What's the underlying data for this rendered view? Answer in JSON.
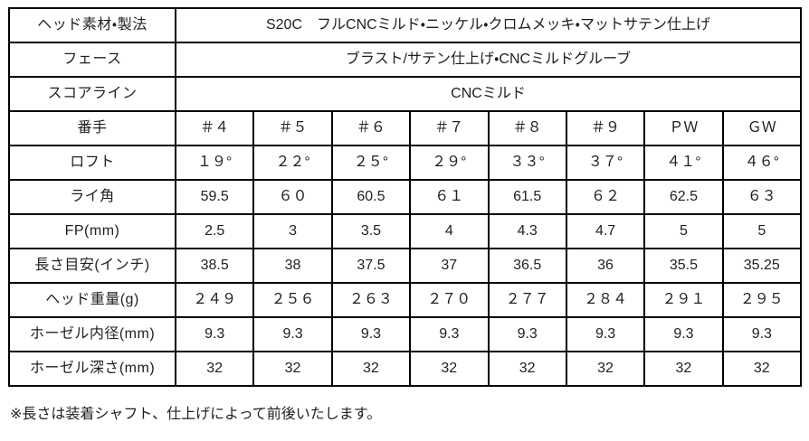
{
  "table": {
    "spec_rows": [
      {
        "label": "ヘッド素材・製法",
        "value": "S20C　フルCNCミルド・ニッケル・クロムメッキ・マットサテン仕上げ"
      },
      {
        "label": "フェース",
        "value": "ブラスト/サテン仕上げ・CNCミルドグルーブ"
      },
      {
        "label": "スコアライン",
        "value": "CNCミルド"
      }
    ],
    "data_rows": [
      {
        "label": "番手",
        "values": [
          "＃４",
          "＃５",
          "＃６",
          "＃７",
          "＃８",
          "＃９",
          "ＰＷ",
          "ＧＷ"
        ]
      },
      {
        "label": "ロフト",
        "values": [
          "１９°",
          "２２°",
          "２５°",
          "２９°",
          "３３°",
          "３７°",
          "４１°",
          "４６°"
        ]
      },
      {
        "label": "ライ角",
        "values": [
          "59.5",
          "６０",
          "60.5",
          "６１",
          "61.5",
          "６２",
          "62.5",
          "６３"
        ]
      },
      {
        "label": "FP(mm)",
        "values": [
          "2.5",
          "3",
          "3.5",
          "4",
          "4.3",
          "4.7",
          "5",
          "5"
        ]
      },
      {
        "label": "長さ目安(インチ)",
        "values": [
          "38.5",
          "38",
          "37.5",
          "37",
          "36.5",
          "36",
          "35.5",
          "35.25"
        ]
      },
      {
        "label": "ヘッド重量(g)",
        "values": [
          "２４９",
          "２５６",
          "２６３",
          "２７０",
          "２７７",
          "２８４",
          "２９１",
          "２９５"
        ]
      },
      {
        "label": "ホーゼル内径(mm)",
        "values": [
          "9.3",
          "9.3",
          "9.3",
          "9.3",
          "9.3",
          "9.3",
          "9.3",
          "9.3"
        ]
      },
      {
        "label": "ホーゼル深さ(mm)",
        "values": [
          "32",
          "32",
          "32",
          "32",
          "32",
          "32",
          "32",
          "32"
        ]
      }
    ],
    "colors": {
      "border": "#000000",
      "text": "#1f1f1f",
      "background": "#ffffff"
    }
  },
  "footnote": "※長さは装着シャフト、仕上げによって前後いたします。"
}
